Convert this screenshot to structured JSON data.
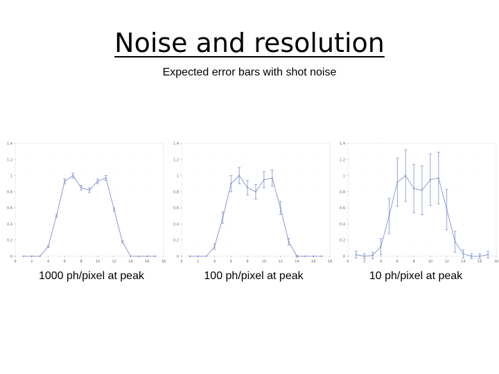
{
  "slide": {
    "title": "Noise and resolution",
    "subtitle": "Expected error bars with shot noise"
  },
  "chart_data": [
    {
      "type": "line",
      "caption": "1000 ph/pixel at peak",
      "xlim": [
        0,
        18
      ],
      "ylim": [
        0,
        1.4
      ],
      "xticks": [
        "0",
        "2",
        "4",
        "6",
        "8",
        "10",
        "12",
        "14",
        "16",
        "18"
      ],
      "yticks": [
        "0",
        "0.2",
        "0.4",
        "0.6",
        "0.8",
        "1",
        "1.2",
        "1.4"
      ],
      "color": "#8f9ad2",
      "series": [
        {
          "x": [
            1,
            2,
            3,
            4,
            5,
            6,
            7,
            8,
            9,
            10,
            11,
            12,
            13,
            14,
            15,
            16,
            17
          ],
          "y": [
            0,
            0,
            0,
            0.12,
            0.5,
            0.93,
            1.0,
            0.85,
            0.82,
            0.93,
            0.97,
            0.58,
            0.18,
            0,
            0,
            0,
            0
          ],
          "err": [
            0,
            0,
            0,
            0.01,
            0.02,
            0.03,
            0.03,
            0.03,
            0.03,
            0.03,
            0.03,
            0.02,
            0.015,
            0,
            0,
            0,
            0
          ]
        }
      ]
    },
    {
      "type": "line",
      "caption": "100 ph/pixel at peak",
      "xlim": [
        0,
        18
      ],
      "ylim": [
        0,
        1.4
      ],
      "xticks": [
        "0",
        "2",
        "4",
        "6",
        "8",
        "10",
        "12",
        "14",
        "16",
        "18"
      ],
      "yticks": [
        "0",
        "0.2",
        "0.4",
        "0.6",
        "0.8",
        "1",
        "1.2",
        "1.4"
      ],
      "color": "#8f9ad2",
      "series": [
        {
          "x": [
            1,
            2,
            3,
            4,
            5,
            6,
            7,
            8,
            9,
            10,
            11,
            12,
            13,
            14,
            15,
            16,
            17
          ],
          "y": [
            0,
            0,
            0,
            0.12,
            0.48,
            0.9,
            1.0,
            0.85,
            0.8,
            0.95,
            0.97,
            0.6,
            0.18,
            0,
            0,
            0,
            0
          ],
          "err": [
            0,
            0,
            0,
            0.035,
            0.07,
            0.1,
            0.1,
            0.09,
            0.09,
            0.1,
            0.1,
            0.08,
            0.04,
            0.01,
            0,
            0,
            0
          ]
        }
      ]
    },
    {
      "type": "line",
      "caption": "10 ph/pixel at peak",
      "xlim": [
        0,
        18
      ],
      "ylim": [
        0,
        1.4
      ],
      "xticks": [
        "0",
        "2",
        "4",
        "6",
        "8",
        "10",
        "12",
        "14",
        "16",
        "18"
      ],
      "yticks": [
        "0",
        "0.2",
        "0.4",
        "0.6",
        "0.8",
        "1",
        "1.2",
        "1.4"
      ],
      "color": "#8f9ad2",
      "series": [
        {
          "x": [
            1,
            2,
            3,
            4,
            5,
            6,
            7,
            8,
            9,
            10,
            11,
            12,
            13,
            14,
            15,
            16,
            17
          ],
          "y": [
            0.02,
            0,
            0.01,
            0.12,
            0.5,
            0.92,
            1.0,
            0.84,
            0.82,
            0.95,
            0.97,
            0.58,
            0.18,
            0.03,
            0,
            0,
            0.02
          ],
          "err": [
            0.04,
            0.03,
            0.04,
            0.1,
            0.22,
            0.3,
            0.32,
            0.3,
            0.3,
            0.32,
            0.32,
            0.25,
            0.13,
            0.05,
            0.03,
            0.03,
            0.04
          ]
        }
      ]
    }
  ]
}
